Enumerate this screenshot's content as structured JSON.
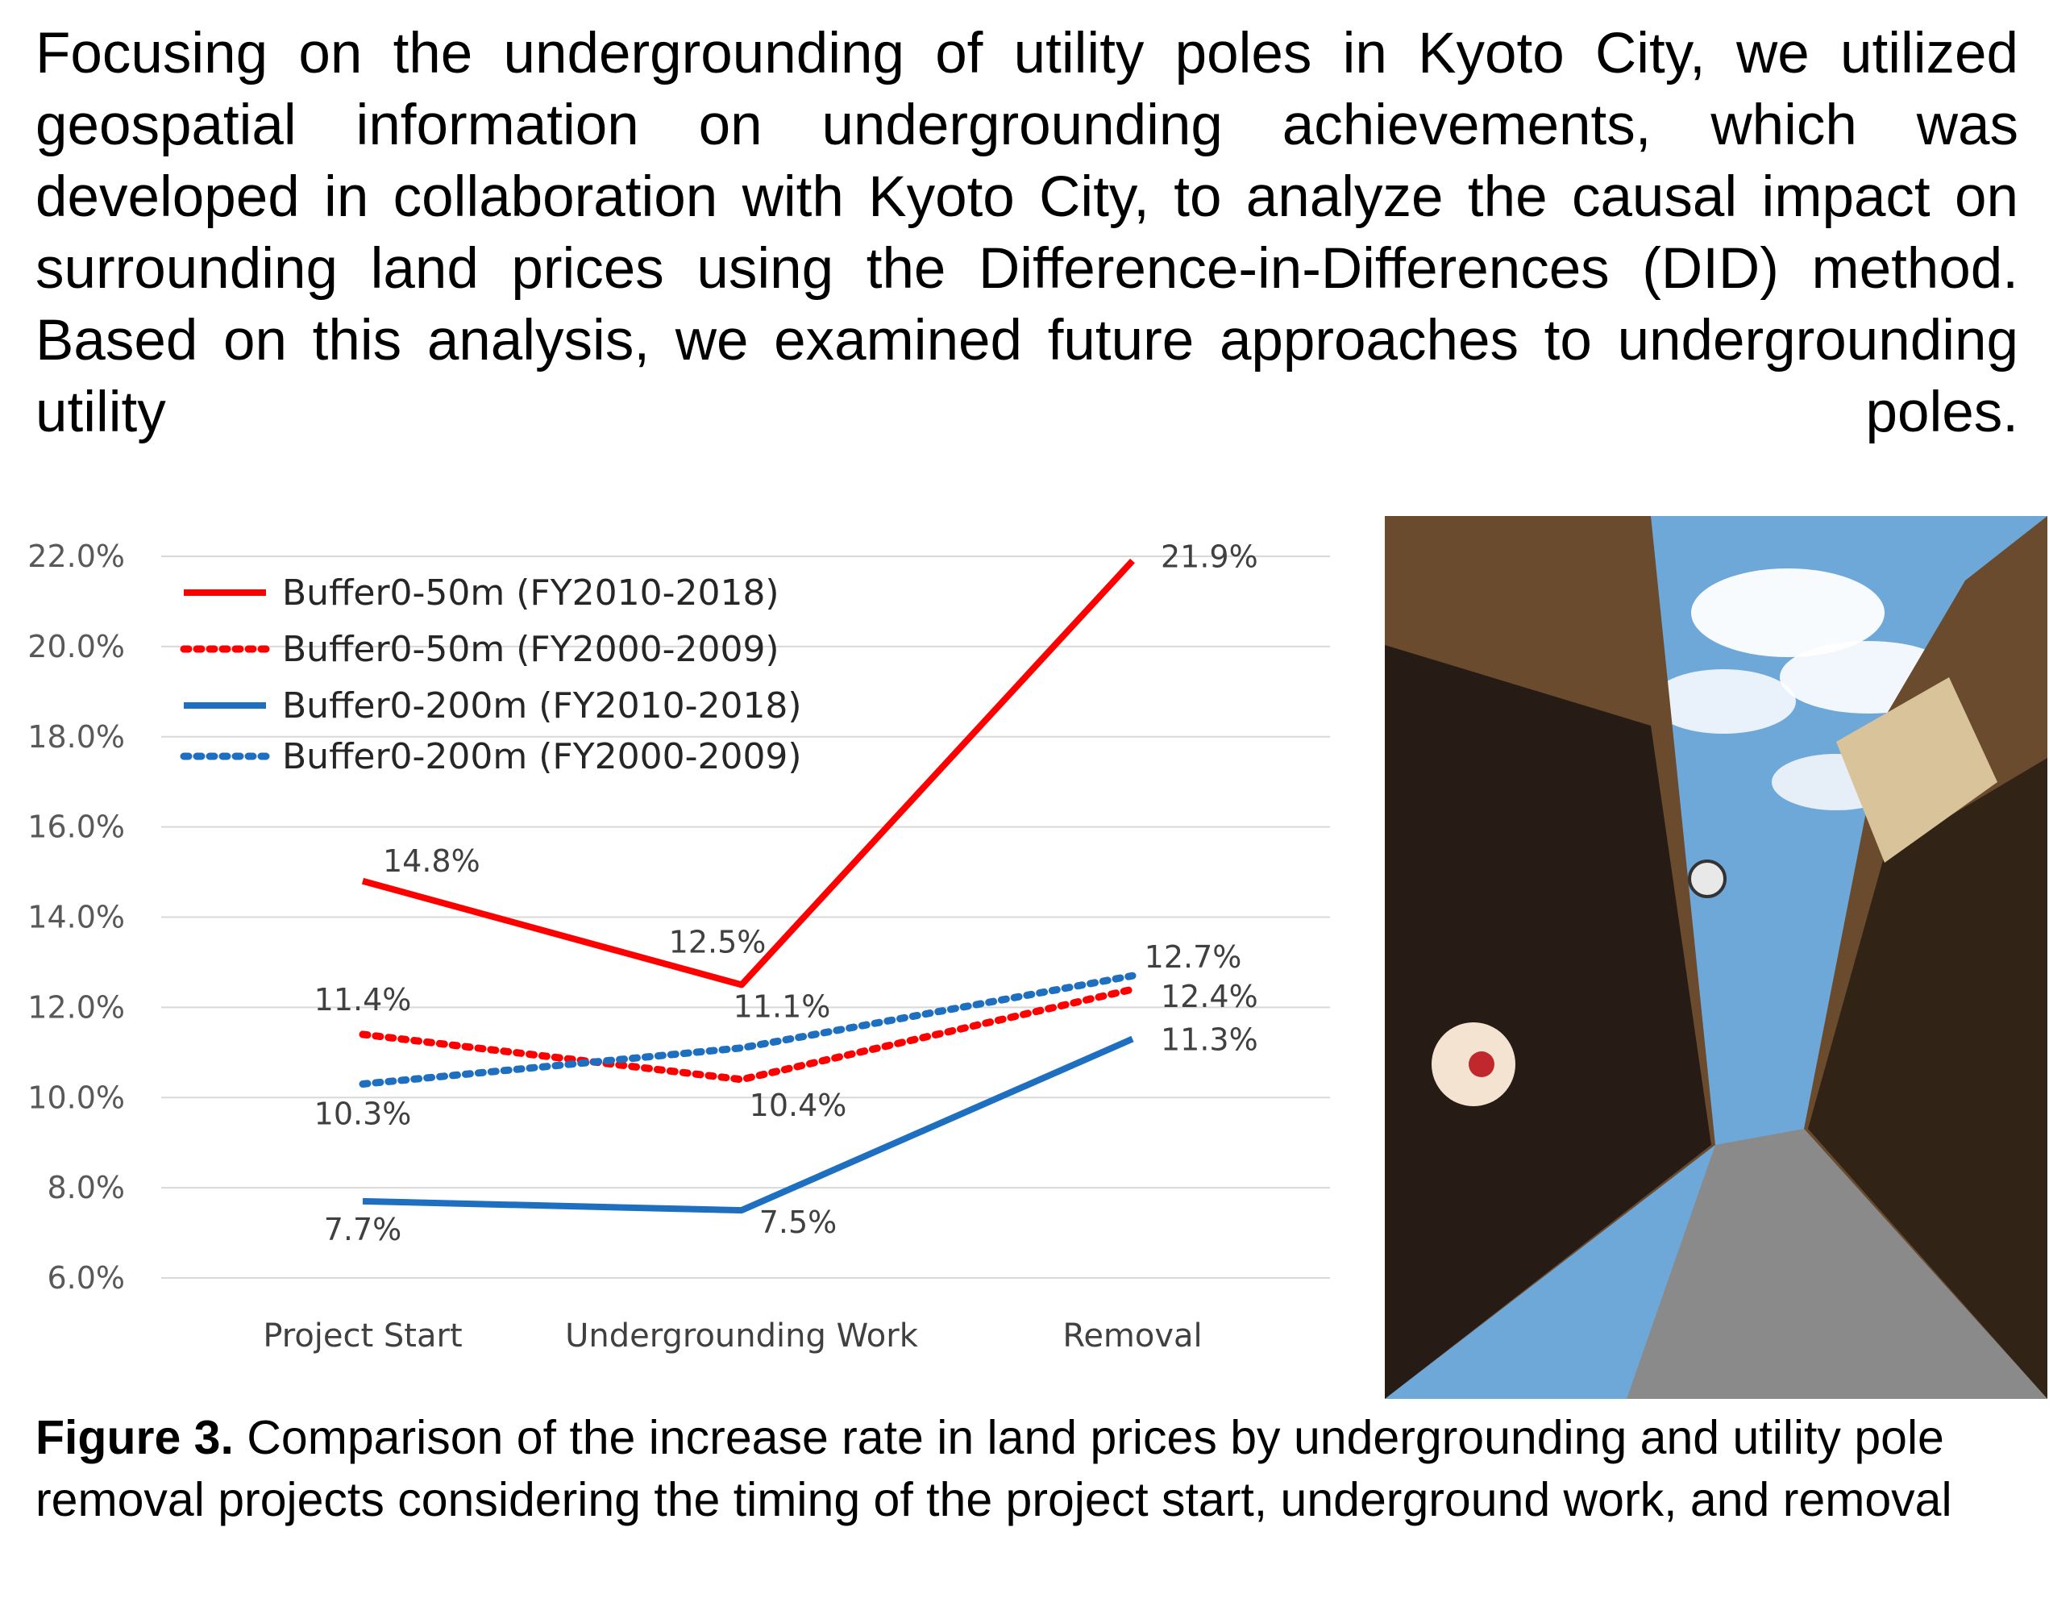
{
  "intro_text": "Focusing on the undergrounding of utility poles in Kyoto City, we utilized geospatial information on undergrounding achievements, which was developed in collaboration with Kyoto City, to analyze the causal impact on surrounding land prices using the Difference-in-Differences (DID) method. Based on this analysis, we examined future approaches to undergrounding utility poles.",
  "caption": {
    "label": "Figure 3.",
    "text": " Comparison of the increase rate in land prices by undergrounding and utility pole removal projects considering the timing of the project start, underground work, and removal"
  },
  "chart_data": {
    "type": "line",
    "categories": [
      "Project Start",
      "Undergrounding Work",
      "Removal"
    ],
    "ylim": [
      6.0,
      22.0
    ],
    "yticks": [
      "6.0%",
      "8.0%",
      "10.0%",
      "12.0%",
      "14.0%",
      "16.0%",
      "18.0%",
      "20.0%",
      "22.0%"
    ],
    "grid": true,
    "legend_position": "top-left",
    "series": [
      {
        "name": "Buffer0-50m (FY2010-2018)",
        "values": [
          14.8,
          12.5,
          21.9
        ],
        "labels": [
          "14.8%",
          "12.5%",
          "21.9%"
        ],
        "color": "#ff0000",
        "style": "solid"
      },
      {
        "name": "Buffer0-50m (FY2000-2009)",
        "values": [
          11.4,
          10.4,
          12.4
        ],
        "labels": [
          "11.4%",
          "10.4%",
          "12.4%"
        ],
        "color": "#ff0000",
        "style": "dotted"
      },
      {
        "name": "Buffer0-200m (FY2010-2018)",
        "values": [
          7.7,
          7.5,
          11.3
        ],
        "labels": [
          "7.7%",
          "7.5%",
          "11.3%"
        ],
        "color": "#1f6fc0",
        "style": "solid"
      },
      {
        "name": "Buffer0-200m (FY2000-2009)",
        "values": [
          10.3,
          11.1,
          12.7
        ],
        "labels": [
          "10.3%",
          "11.1%",
          "12.7%"
        ],
        "color": "#1f6fc0",
        "style": "dotted"
      }
    ]
  },
  "photo": {
    "sky_color": "#6ea8d9",
    "wall_color": "#6b4b2e",
    "road_color": "#8a8a8a",
    "lantern_color": "#f4e3d0",
    "lantern_accent": "#c0282d"
  }
}
